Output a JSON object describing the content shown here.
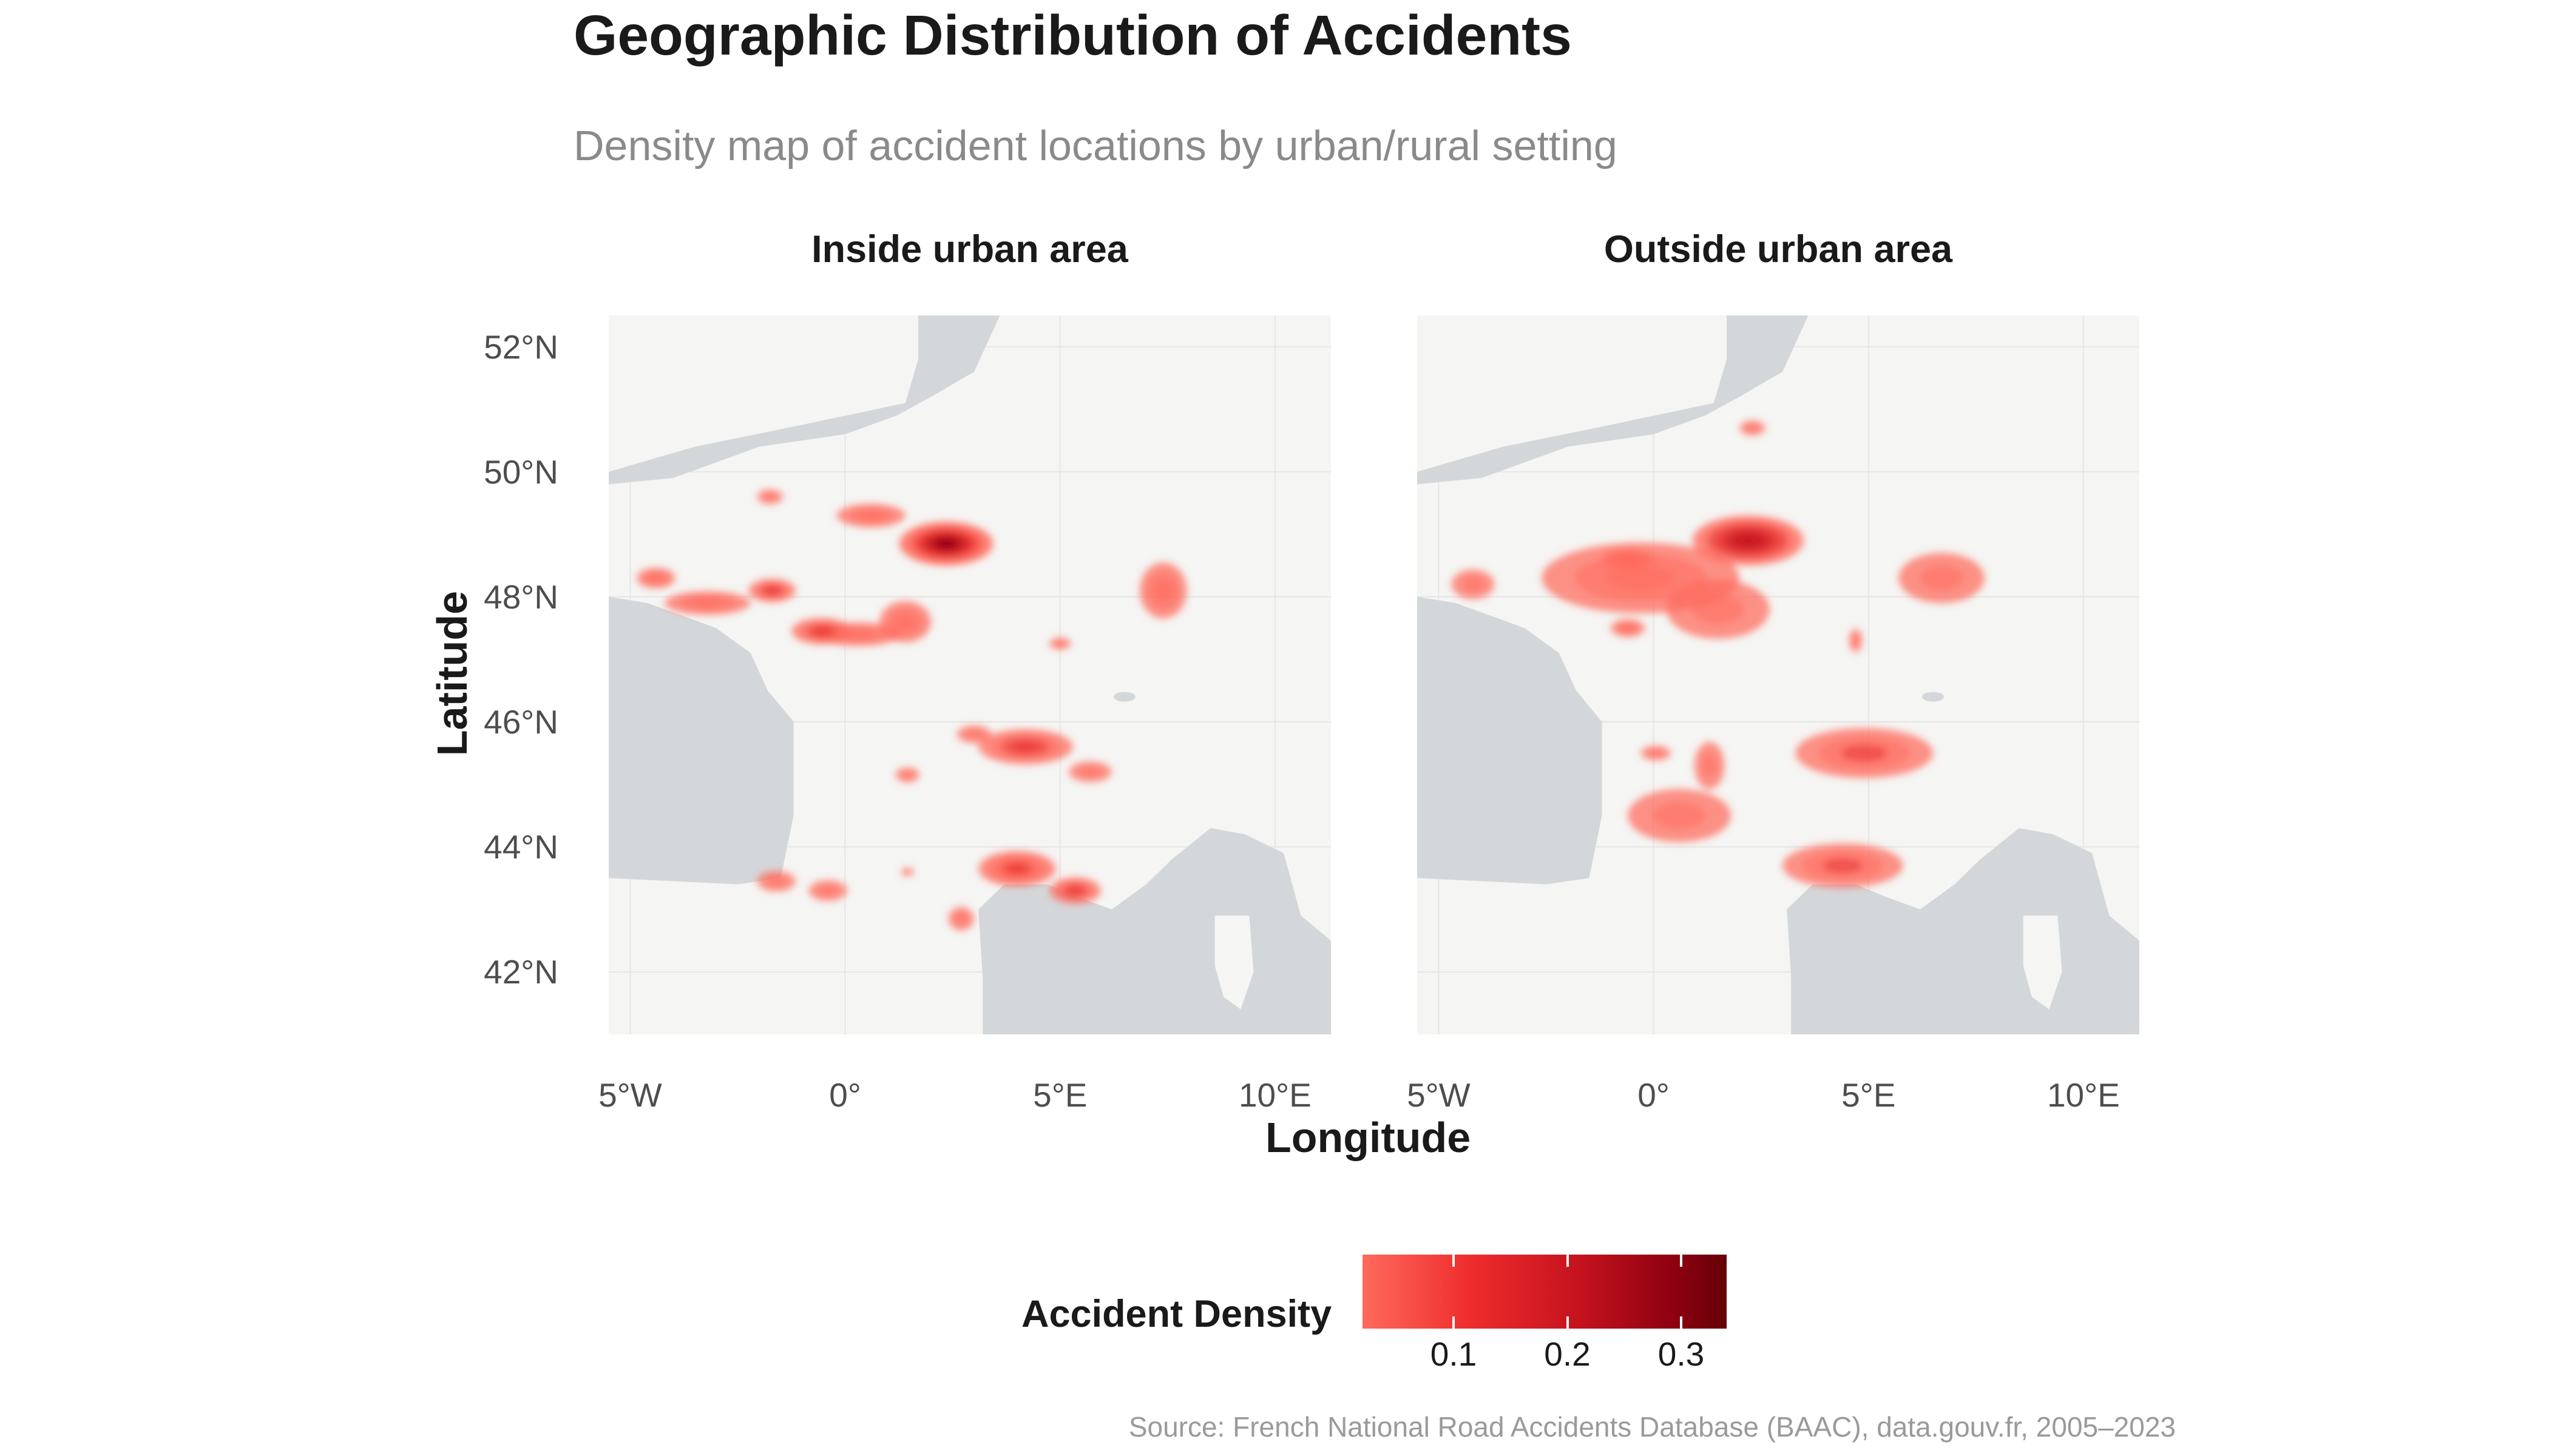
{
  "title": "Geographic Distribution of Accidents",
  "subtitle": "Density map of accident locations by urban/rural setting",
  "caption": "Source: French National Road Accidents Database (BAAC), data.gouv.fr, 2005–2023",
  "colors": {
    "low": "#ff6a5c",
    "mid": "#ee2c2c",
    "high": "#650008",
    "water": "#d4d7da",
    "land": "#f5f5f3"
  },
  "chart_data": {
    "type": "heatmap",
    "xlabel": "Longitude",
    "ylabel": "Latitude",
    "xlim": [
      -5.5,
      11.3
    ],
    "ylim": [
      41.0,
      52.5
    ],
    "x_ticks": [
      -5,
      0,
      5,
      10
    ],
    "x_tick_labels": [
      "5°W",
      "0°",
      "5°E",
      "10°E"
    ],
    "y_ticks": [
      42,
      44,
      46,
      48,
      50,
      52
    ],
    "y_tick_labels": [
      "42°N",
      "44°N",
      "46°N",
      "48°N",
      "50°N",
      "52°N"
    ],
    "legend": {
      "title": "Accident Density",
      "ticks": [
        0.1,
        0.2,
        0.3
      ],
      "tick_labels": [
        "0.1",
        "0.2",
        "0.3"
      ],
      "range": [
        0.02,
        0.34
      ]
    },
    "facets": [
      {
        "name": "Inside urban area",
        "hotspots": [
          {
            "lon": 2.35,
            "lat": 48.85,
            "density": 0.34,
            "spread": [
              1.1,
              0.75
            ]
          },
          {
            "lon": 0.6,
            "lat": 49.3,
            "density": 0.1,
            "spread": [
              0.8,
              0.4
            ]
          },
          {
            "lon": 0.3,
            "lat": 47.4,
            "density": 0.1,
            "spread": [
              1.0,
              0.4
            ]
          },
          {
            "lon": -0.55,
            "lat": 47.45,
            "density": 0.14,
            "spread": [
              0.7,
              0.45
            ]
          },
          {
            "lon": 1.4,
            "lat": 47.6,
            "density": 0.09,
            "spread": [
              0.6,
              0.7
            ]
          },
          {
            "lon": -1.7,
            "lat": 48.1,
            "density": 0.14,
            "spread": [
              0.55,
              0.4
            ]
          },
          {
            "lon": -3.2,
            "lat": 47.9,
            "density": 0.1,
            "spread": [
              1.0,
              0.4
            ]
          },
          {
            "lon": -4.4,
            "lat": 48.3,
            "density": 0.09,
            "spread": [
              0.45,
              0.35
            ]
          },
          {
            "lon": -1.75,
            "lat": 49.6,
            "density": 0.06,
            "spread": [
              0.3,
              0.25
            ]
          },
          {
            "lon": 4.2,
            "lat": 45.6,
            "density": 0.14,
            "spread": [
              1.1,
              0.6
            ]
          },
          {
            "lon": 3.0,
            "lat": 45.8,
            "density": 0.08,
            "spread": [
              0.4,
              0.3
            ]
          },
          {
            "lon": 5.7,
            "lat": 45.2,
            "density": 0.08,
            "spread": [
              0.5,
              0.35
            ]
          },
          {
            "lon": 5.0,
            "lat": 47.25,
            "density": 0.07,
            "spread": [
              0.25,
              0.2
            ]
          },
          {
            "lon": 7.4,
            "lat": 48.1,
            "density": 0.1,
            "spread": [
              0.55,
              0.95
            ]
          },
          {
            "lon": 4.0,
            "lat": 43.65,
            "density": 0.16,
            "spread": [
              0.9,
              0.6
            ]
          },
          {
            "lon": 5.35,
            "lat": 43.3,
            "density": 0.14,
            "spread": [
              0.6,
              0.45
            ]
          },
          {
            "lon": 2.7,
            "lat": 42.85,
            "density": 0.07,
            "spread": [
              0.3,
              0.4
            ]
          },
          {
            "lon": -1.6,
            "lat": 43.45,
            "density": 0.08,
            "spread": [
              0.45,
              0.35
            ]
          },
          {
            "lon": -0.4,
            "lat": 43.3,
            "density": 0.08,
            "spread": [
              0.45,
              0.35
            ]
          },
          {
            "lon": 1.45,
            "lat": 43.6,
            "density": 0.06,
            "spread": [
              0.15,
              0.12
            ]
          },
          {
            "lon": 1.45,
            "lat": 45.15,
            "density": 0.06,
            "spread": [
              0.28,
              0.25
            ]
          }
        ]
      },
      {
        "name": "Outside urban area",
        "hotspots": [
          {
            "lon": 2.2,
            "lat": 48.9,
            "density": 0.24,
            "spread": [
              1.3,
              0.85
            ]
          },
          {
            "lon": -0.3,
            "lat": 48.3,
            "density": 0.1,
            "spread": [
              2.3,
              1.2
            ]
          },
          {
            "lon": 1.5,
            "lat": 47.8,
            "density": 0.08,
            "spread": [
              1.2,
              1.0
            ]
          },
          {
            "lon": -4.2,
            "lat": 48.2,
            "density": 0.07,
            "spread": [
              0.5,
              0.5
            ]
          },
          {
            "lon": -0.6,
            "lat": 47.5,
            "density": 0.09,
            "spread": [
              0.4,
              0.3
            ]
          },
          {
            "lon": -0.6,
            "lat": 48.6,
            "density": 0.1,
            "spread": [
              0.6,
              0.35
            ]
          },
          {
            "lon": 2.3,
            "lat": 50.7,
            "density": 0.06,
            "spread": [
              0.3,
              0.25
            ]
          },
          {
            "lon": 6.7,
            "lat": 48.3,
            "density": 0.07,
            "spread": [
              1.0,
              0.85
            ]
          },
          {
            "lon": 4.7,
            "lat": 47.3,
            "density": 0.06,
            "spread": [
              0.15,
              0.4
            ]
          },
          {
            "lon": 4.9,
            "lat": 45.5,
            "density": 0.11,
            "spread": [
              1.6,
              0.85
            ]
          },
          {
            "lon": 4.4,
            "lat": 43.7,
            "density": 0.12,
            "spread": [
              1.4,
              0.75
            ]
          },
          {
            "lon": 0.6,
            "lat": 44.5,
            "density": 0.07,
            "spread": [
              1.2,
              0.9
            ]
          },
          {
            "lon": 1.3,
            "lat": 45.3,
            "density": 0.06,
            "spread": [
              0.35,
              0.8
            ]
          },
          {
            "lon": 0.05,
            "lat": 45.5,
            "density": 0.06,
            "spread": [
              0.35,
              0.25
            ]
          }
        ]
      }
    ]
  }
}
